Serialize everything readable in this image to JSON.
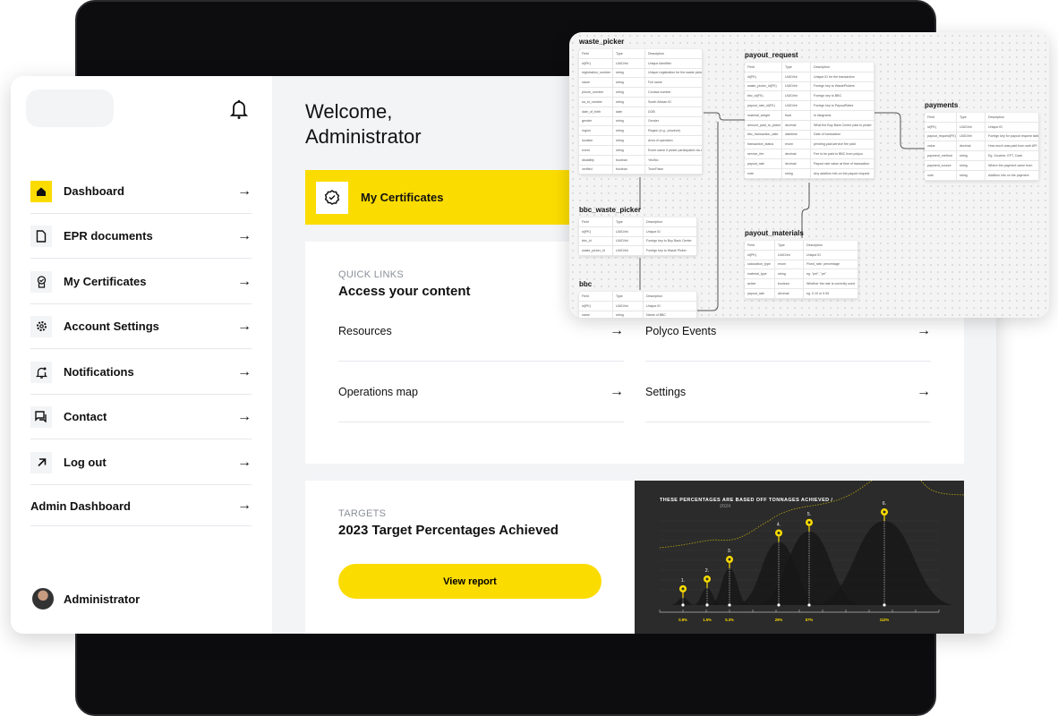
{
  "sidebar": {
    "items": [
      {
        "label": "Dashboard",
        "icon": "home-icon",
        "active": true
      },
      {
        "label": "EPR documents",
        "icon": "document-icon"
      },
      {
        "label": "My Certificates",
        "icon": "certificate-icon"
      },
      {
        "label": "Account Settings",
        "icon": "gear-icon"
      },
      {
        "label": "Notifications",
        "icon": "notification-bell-icon"
      },
      {
        "label": "Contact",
        "icon": "chat-icon"
      },
      {
        "label": "Log out",
        "icon": "arrow-up-right-icon"
      }
    ],
    "admin_dashboard": "Admin Dashboard",
    "user_name": "Administrator"
  },
  "main": {
    "welcome": "Welcome, Administrator",
    "certificates_card": "My Certificates",
    "quick_links": {
      "eyebrow": "QUICK LINKS",
      "title": "Access your content",
      "links": [
        "Resources",
        "Polyco Events",
        "Operations map",
        "Settings"
      ]
    },
    "targets": {
      "eyebrow": "TARGETS",
      "title": "2023 Target Percentages Achieved",
      "button": "View report"
    }
  },
  "chart_data": {
    "type": "area",
    "title": "THESE PERCENTAGES ARE BASED OFF TONNAGES ACHIEVED /",
    "title_year": "2024",
    "accent": "#fbdc00",
    "categories": [
      "1.",
      "2.",
      "3.",
      "4.",
      "5.",
      "6."
    ],
    "values": [
      0.8,
      1.5,
      5.3,
      29,
      57,
      112
    ],
    "labels": [
      "0.8%",
      "1.5%",
      "5.3%",
      "29%",
      "57%",
      "112%"
    ]
  },
  "er_diagram": {
    "tables": [
      {
        "name": "waste_picker",
        "header": [
          "Field",
          "Type",
          "Description"
        ],
        "rows": [
          [
            "id(PK)",
            "UUID/int",
            "Unique identifier"
          ],
          [
            "registration_number",
            "string",
            "Unique registration for the waste picker"
          ],
          [
            "name",
            "string",
            "Full name"
          ],
          [
            "phone_number",
            "string",
            "Contact number"
          ],
          [
            "sa_id_number",
            "string",
            "South African ID"
          ],
          [
            "date_of_birth",
            "date",
            "DOB"
          ],
          [
            "gender",
            "string",
            "Gender"
          ],
          [
            "region",
            "string",
            "Region (e.g., province)"
          ],
          [
            "location",
            "string",
            "Area of operation"
          ],
          [
            "event",
            "string",
            "Event name if picker participated via an event"
          ],
          [
            "disability",
            "boolean",
            "Yes/No"
          ],
          [
            "verified",
            "boolean",
            "True/False"
          ]
        ]
      },
      {
        "name": "payout_request",
        "header": [
          "Field",
          "Type",
          "Description"
        ],
        "rows": [
          [
            "id(PK)",
            "UUID/int",
            "Unique ID for the transaction"
          ],
          [
            "waste_picker_id(FK)",
            "UUID/int",
            "Foreign key to WastePickers"
          ],
          [
            "bbc_id(FK)",
            "UUID/int",
            "Foreign key to BBC"
          ],
          [
            "payout_rate_id(FK)",
            "UUID/int",
            "Foreign key to PayoutRates"
          ],
          [
            "material_weight",
            "float",
            "In kilograms"
          ],
          [
            "amount_paid_to_picker",
            "decimal",
            "What the Buy Back Centre paid to picker"
          ],
          [
            "bbc_transaction_date",
            "datetime",
            "Date of transaction"
          ],
          [
            "transaction_status",
            "enum",
            "pending,paid,service fee paid"
          ],
          [
            "service_fee",
            "decimal",
            "Fee to be paid to BBC from polyco"
          ],
          [
            "payout_rate",
            "decimal",
            "Payout rate value at time of transaction"
          ],
          [
            "note",
            "string",
            "Any addition info on the payout request"
          ]
        ]
      },
      {
        "name": "payments",
        "header": [
          "Field",
          "Type",
          "Description"
        ],
        "rows": [
          [
            "id(PK)",
            "UUID/int",
            "Unique ID"
          ],
          [
            "payout_request(FK)",
            "UUID/int",
            "Foreign key for payout request table"
          ],
          [
            "value",
            "decimal",
            "How much was paid from web API"
          ],
          [
            "payment_method",
            "string",
            "Eg. Voucher, EFT, Cash"
          ],
          [
            "payment_source",
            "string",
            "Where the payment came from"
          ],
          [
            "note",
            "string",
            "Addition info on the payment"
          ]
        ]
      },
      {
        "name": "bbc_waste_picker",
        "header": [
          "Field",
          "Type",
          "Description"
        ],
        "rows": [
          [
            "id(PK)",
            "UUID/int",
            "Unique ID"
          ],
          [
            "bbc_id",
            "UUID/int",
            "Foreign key to Buy Back Center"
          ],
          [
            "waste_picker_id",
            "UUID/int",
            "Foreign key to Waste Picker"
          ]
        ]
      },
      {
        "name": "payout_materials",
        "header": [
          "Field",
          "Type",
          "Description"
        ],
        "rows": [
          [
            "id(PK)",
            "UUID/int",
            "Unique ID"
          ],
          [
            "calculation_type",
            "enum",
            "Fixed_rate, percentage"
          ],
          [
            "material_type",
            "string",
            "eg. \"pet\", \"pe\""
          ],
          [
            "active",
            "boolean",
            "Whether the rate is currently used"
          ],
          [
            "payout_rate",
            "decimal",
            "eg. 0.10 or 0.05"
          ]
        ]
      },
      {
        "name": "bbc",
        "header": [
          "Field",
          "Type",
          "Description"
        ],
        "rows": [
          [
            "id(PK)",
            "UUID/int",
            "Unique ID"
          ],
          [
            "name",
            "string",
            "Name of BBC"
          ]
        ]
      }
    ]
  }
}
